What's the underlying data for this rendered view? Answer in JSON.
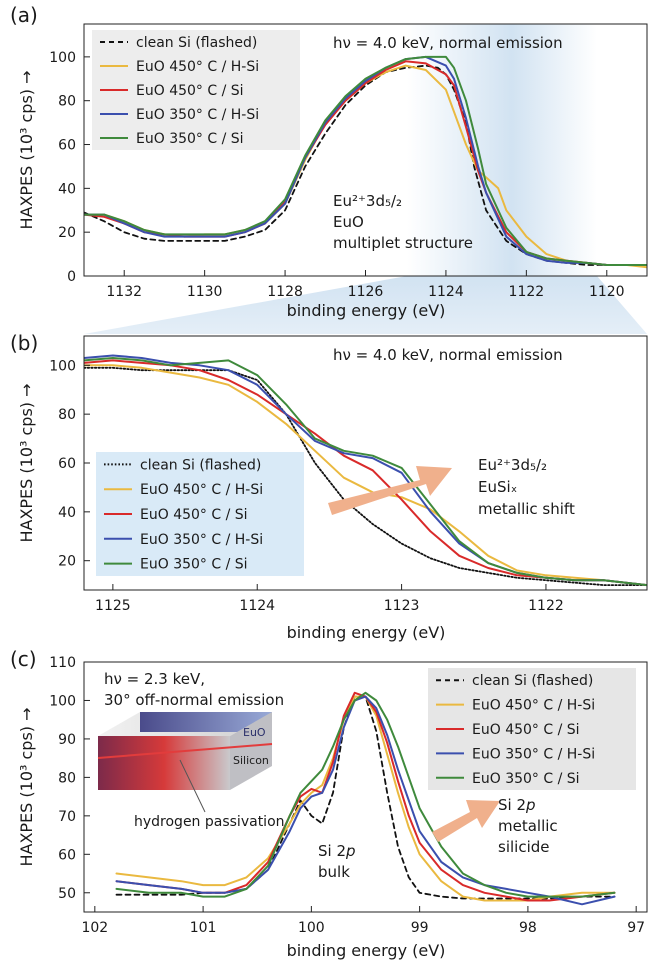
{
  "colors": {
    "clean": "#111111",
    "euo450hsi": "#eab940",
    "euo450si": "#d92a2a",
    "euo350hsi": "#3b4fae",
    "euo350si": "#3f8a3c",
    "highlight": "#cfe1f1",
    "legend_bg_a": "#ececec",
    "legend_bg_b": "#d6e8f6",
    "legend_bg_c": "#e4e4e4",
    "arrow": "#f0b08c"
  },
  "chart_data": [
    {
      "panel": "(a)",
      "type": "line",
      "xlabel": "binding energy (eV)",
      "ylabel": "HAXPES (10³ cps)  →",
      "xlim": [
        1133,
        1119
      ],
      "ylim": [
        0,
        115
      ],
      "xticks": [
        1132,
        1130,
        1128,
        1126,
        1124,
        1122,
        1120
      ],
      "yticks": [
        0,
        20,
        40,
        60,
        80,
        100
      ],
      "annotation_top": "hν = 4.0 keV, normal emission",
      "annotation_lines": [
        "Eu²⁺3d₅/₂",
        "EuO",
        "multiplet structure"
      ],
      "legend_position": "top-left",
      "series": [
        {
          "name": "clean Si (flashed)",
          "style": "dashed",
          "color_key": "clean",
          "x": [
            1133,
            1132.5,
            1132,
            1131.5,
            1131,
            1130.5,
            1130,
            1129.5,
            1129,
            1128.5,
            1128,
            1127.5,
            1127,
            1126.5,
            1126,
            1125.5,
            1125,
            1124.5,
            1124.2,
            1124,
            1123.8,
            1123.5,
            1123.3,
            1123,
            1122.5,
            1122,
            1121.5,
            1121,
            1120.5,
            1120,
            1119.5,
            1119
          ],
          "y": [
            29,
            25,
            20,
            17,
            16,
            16,
            16,
            16,
            18,
            21,
            30,
            50,
            65,
            78,
            87,
            93,
            95,
            96,
            95,
            92,
            85,
            70,
            50,
            30,
            16,
            10,
            7,
            6,
            5,
            5,
            5,
            5
          ]
        },
        {
          "name": "EuO 450° C / H-Si",
          "style": "solid",
          "color_key": "euo450hsi",
          "x": [
            1133,
            1132.5,
            1132,
            1131.5,
            1131,
            1130.5,
            1130,
            1129.5,
            1129,
            1128.5,
            1128,
            1127.5,
            1127,
            1126.5,
            1126,
            1125.5,
            1125,
            1124.5,
            1124,
            1123.5,
            1123.2,
            1123,
            1122.7,
            1122.5,
            1122,
            1121.5,
            1121,
            1120.5,
            1120,
            1119.5,
            1119
          ],
          "y": [
            28,
            28,
            25,
            21,
            19,
            18,
            19,
            19,
            21,
            24,
            33,
            53,
            70,
            80,
            88,
            93,
            96,
            94,
            85,
            60,
            48,
            45,
            40,
            30,
            18,
            10,
            7,
            6,
            5,
            5,
            4
          ]
        },
        {
          "name": "EuO 450° C / Si",
          "style": "solid",
          "color_key": "euo450si",
          "x": [
            1133,
            1132.5,
            1132,
            1131.5,
            1131,
            1130.5,
            1130,
            1129.5,
            1129,
            1128.5,
            1128,
            1127.5,
            1127,
            1126.5,
            1126,
            1125.5,
            1125,
            1124.5,
            1124,
            1123.8,
            1123.5,
            1123.2,
            1123,
            1122.5,
            1122,
            1121.5,
            1121,
            1120.5,
            1120,
            1119.5,
            1119
          ],
          "y": [
            28,
            27,
            24,
            20,
            19,
            18,
            18,
            18,
            20,
            24,
            34,
            54,
            69,
            80,
            88,
            94,
            98,
            97,
            92,
            87,
            68,
            48,
            38,
            20,
            11,
            8,
            7,
            6,
            5,
            5,
            5
          ]
        },
        {
          "name": "EuO 350° C / H-Si",
          "style": "solid",
          "color_key": "euo350hsi",
          "x": [
            1133,
            1132.5,
            1132,
            1131.5,
            1131,
            1130.5,
            1130,
            1129.5,
            1129,
            1128.5,
            1128,
            1127.5,
            1127,
            1126.5,
            1126,
            1125.5,
            1125,
            1124.5,
            1124,
            1123.8,
            1123.5,
            1123.2,
            1123,
            1122.5,
            1122,
            1121.5,
            1121,
            1120.5,
            1120,
            1119.5,
            1119
          ],
          "y": [
            28,
            28,
            24,
            20,
            18,
            18,
            18,
            18,
            20,
            24,
            33,
            54,
            70,
            81,
            89,
            95,
            99,
            100,
            96,
            90,
            72,
            50,
            38,
            18,
            10,
            7,
            6,
            6,
            5,
            5,
            5
          ]
        },
        {
          "name": "EuO 350° C / Si",
          "style": "solid",
          "color_key": "euo350si",
          "x": [
            1133,
            1132.5,
            1132,
            1131.5,
            1131,
            1130.5,
            1130,
            1129.5,
            1129,
            1128.5,
            1128,
            1127.5,
            1127,
            1126.5,
            1126,
            1125.5,
            1125,
            1124.5,
            1124,
            1123.8,
            1123.5,
            1123.2,
            1123,
            1122.5,
            1122,
            1121.5,
            1121,
            1120.5,
            1120,
            1119.5,
            1119
          ],
          "y": [
            28,
            28,
            25,
            21,
            19,
            19,
            19,
            19,
            21,
            25,
            35,
            55,
            71,
            82,
            90,
            95,
            99,
            100,
            100,
            95,
            80,
            58,
            42,
            22,
            11,
            8,
            7,
            6,
            5,
            5,
            5
          ]
        }
      ]
    },
    {
      "panel": "(b)",
      "type": "line",
      "xlabel": "binding energy (eV)",
      "ylabel": "HAXPES (10³ cps)  →",
      "xlim": [
        1125.2,
        1121.3
      ],
      "ylim": [
        8,
        112
      ],
      "xticks": [
        1125,
        1124,
        1123,
        1122
      ],
      "yticks": [
        20,
        40,
        60,
        80,
        100
      ],
      "annotation_top": "hν = 4.0 keV, normal emission",
      "annotation_lines": [
        "Eu²⁺3d₅/₂",
        "EuSiₓ",
        "metallic shift"
      ],
      "legend_position": "bottom-left",
      "series": [
        {
          "name": "clean Si (flashed)",
          "style": "dotted",
          "color_key": "clean",
          "x": [
            1125.2,
            1125,
            1124.8,
            1124.6,
            1124.4,
            1124.2,
            1124,
            1123.8,
            1123.6,
            1123.4,
            1123.2,
            1123,
            1122.8,
            1122.6,
            1122.4,
            1122.2,
            1122,
            1121.8,
            1121.6,
            1121.3
          ],
          "y": [
            99,
            99,
            98,
            98,
            98,
            98,
            94,
            80,
            60,
            45,
            35,
            27,
            21,
            17,
            15,
            13,
            12,
            11,
            10,
            10
          ]
        },
        {
          "name": "EuO 450° C / H-Si",
          "style": "solid",
          "color_key": "euo450hsi",
          "x": [
            1125.2,
            1125,
            1124.8,
            1124.6,
            1124.4,
            1124.2,
            1124,
            1123.8,
            1123.6,
            1123.4,
            1123.2,
            1123,
            1122.8,
            1122.6,
            1122.4,
            1122.2,
            1122,
            1121.8,
            1121.6,
            1121.3
          ],
          "y": [
            100,
            100,
            99,
            97,
            95,
            92,
            85,
            76,
            65,
            54,
            48,
            46,
            41,
            32,
            22,
            16,
            14,
            13,
            12,
            10
          ]
        },
        {
          "name": "EuO 450° C / Si",
          "style": "solid",
          "color_key": "euo450si",
          "x": [
            1125.2,
            1125,
            1124.8,
            1124.6,
            1124.4,
            1124.2,
            1124,
            1123.8,
            1123.6,
            1123.4,
            1123.2,
            1123,
            1122.8,
            1122.6,
            1122.4,
            1122.2,
            1122,
            1121.8,
            1121.6,
            1121.3
          ],
          "y": [
            101,
            102,
            101,
            100,
            98,
            94,
            88,
            80,
            72,
            63,
            57,
            45,
            32,
            22,
            17,
            14,
            13,
            12,
            12,
            10
          ]
        },
        {
          "name": "EuO 350° C / H-Si",
          "style": "solid",
          "color_key": "euo350hsi",
          "x": [
            1125.2,
            1125,
            1124.8,
            1124.6,
            1124.4,
            1124.2,
            1124,
            1123.8,
            1123.6,
            1123.4,
            1123.2,
            1123,
            1122.8,
            1122.6,
            1122.4,
            1122.2,
            1122,
            1121.8,
            1121.6,
            1121.3
          ],
          "y": [
            103,
            104,
            103,
            101,
            100,
            98,
            92,
            80,
            69,
            64,
            62,
            56,
            40,
            27,
            19,
            15,
            13,
            12,
            12,
            10
          ]
        },
        {
          "name": "EuO 350° C / Si",
          "style": "solid",
          "color_key": "euo350si",
          "x": [
            1125.2,
            1125,
            1124.8,
            1124.6,
            1124.4,
            1124.2,
            1124,
            1123.8,
            1123.6,
            1123.4,
            1123.2,
            1123,
            1122.8,
            1122.6,
            1122.4,
            1122.2,
            1122,
            1121.8,
            1121.6,
            1121.3
          ],
          "y": [
            102,
            103,
            102,
            100,
            101,
            102,
            96,
            84,
            70,
            65,
            63,
            58,
            43,
            28,
            19,
            15,
            13,
            12,
            12,
            10
          ]
        }
      ]
    },
    {
      "panel": "(c)",
      "type": "line",
      "xlabel": "binding energy (eV)",
      "ylabel": "HAXPES (10³ cps)  →",
      "xlim": [
        102.1,
        96.9
      ],
      "ylim": [
        45,
        110
      ],
      "xticks": [
        102,
        101,
        100,
        99,
        98,
        97
      ],
      "yticks": [
        50,
        60,
        70,
        80,
        90,
        100,
        110
      ],
      "annotation_top_lines": [
        "hν = 2.3 keV,",
        "30° off-normal emission"
      ],
      "annotation_bulk": [
        "Si 2p",
        "bulk"
      ],
      "annotation_silicide": [
        "Si 2p",
        "metallic",
        "silicide"
      ],
      "inset_labels": [
        "EuO",
        "Silicon",
        "hydrogen passivation"
      ],
      "legend_position": "top-right",
      "series": [
        {
          "name": "clean Si (flashed)",
          "style": "dashed",
          "color_key": "clean",
          "x": [
            101.8,
            101.5,
            101.2,
            101,
            100.8,
            100.6,
            100.4,
            100.2,
            100.1,
            100,
            99.9,
            99.8,
            99.7,
            99.6,
            99.5,
            99.4,
            99.3,
            99.2,
            99.1,
            99,
            98.8,
            98.6,
            98.4,
            98.2,
            98,
            97.8,
            97.5,
            97.2
          ],
          "y": [
            49.5,
            49.5,
            49.5,
            50,
            50,
            51,
            56,
            68,
            74,
            70,
            68,
            76,
            93,
            101,
            101,
            92,
            76,
            62,
            54,
            50,
            49,
            48.5,
            48.5,
            48.5,
            48.5,
            48.5,
            49,
            49
          ]
        },
        {
          "name": "EuO 450° C / H-Si",
          "style": "solid",
          "color_key": "euo450hsi",
          "x": [
            101.8,
            101.5,
            101.2,
            101,
            100.8,
            100.6,
            100.4,
            100.2,
            100.1,
            100,
            99.9,
            99.8,
            99.7,
            99.6,
            99.5,
            99.4,
            99.3,
            99.2,
            99.1,
            99,
            98.8,
            98.6,
            98.4,
            98.2,
            98,
            97.8,
            97.5,
            97.2
          ],
          "y": [
            55,
            54,
            53,
            52,
            52,
            54,
            59,
            68,
            73,
            76,
            78,
            85,
            95,
            101,
            101,
            96,
            86,
            76,
            67,
            60,
            53,
            49,
            48,
            48,
            48,
            49,
            50,
            50
          ]
        },
        {
          "name": "EuO 450° C / Si",
          "style": "solid",
          "color_key": "euo450si",
          "x": [
            101.8,
            101.5,
            101.2,
            101,
            100.8,
            100.6,
            100.4,
            100.2,
            100.1,
            100,
            99.9,
            99.8,
            99.7,
            99.6,
            99.5,
            99.4,
            99.3,
            99.2,
            99.1,
            99,
            98.8,
            98.6,
            98.4,
            98.2,
            98,
            97.8,
            97.5,
            97.2
          ],
          "y": [
            53,
            52,
            51,
            50,
            50,
            52,
            58,
            70,
            75,
            77,
            76,
            84,
            96,
            102,
            101,
            97,
            89,
            79,
            70,
            63,
            56,
            52,
            50,
            49,
            48,
            48,
            49,
            50
          ]
        },
        {
          "name": "EuO 350° C / H-Si",
          "style": "solid",
          "color_key": "euo350hsi",
          "x": [
            101.8,
            101.5,
            101.2,
            101,
            100.8,
            100.6,
            100.4,
            100.2,
            100.1,
            100,
            99.9,
            99.8,
            99.7,
            99.6,
            99.5,
            99.4,
            99.3,
            99.2,
            99.1,
            99,
            98.8,
            98.6,
            98.4,
            98.2,
            98,
            97.8,
            97.5,
            97.2
          ],
          "y": [
            53,
            52,
            51,
            50,
            50,
            51,
            56,
            66,
            72,
            75,
            76,
            82,
            93,
            100,
            101,
            98,
            91,
            82,
            74,
            66,
            58,
            54,
            52,
            51,
            50,
            49,
            47,
            49
          ]
        },
        {
          "name": "EuO 350° C / Si",
          "style": "solid",
          "color_key": "euo350si",
          "x": [
            101.8,
            101.5,
            101.2,
            101,
            100.8,
            100.6,
            100.4,
            100.2,
            100.1,
            100,
            99.9,
            99.8,
            99.7,
            99.6,
            99.5,
            99.4,
            99.3,
            99.2,
            99.1,
            99,
            98.8,
            98.6,
            98.4,
            98.2,
            98,
            97.8,
            97.5,
            97.2
          ],
          "y": [
            51,
            50,
            50,
            49,
            49,
            51,
            57,
            70,
            76,
            79,
            82,
            88,
            95,
            100,
            102,
            100,
            95,
            88,
            80,
            72,
            62,
            55,
            52,
            50,
            49,
            49,
            49,
            50
          ]
        }
      ]
    }
  ]
}
